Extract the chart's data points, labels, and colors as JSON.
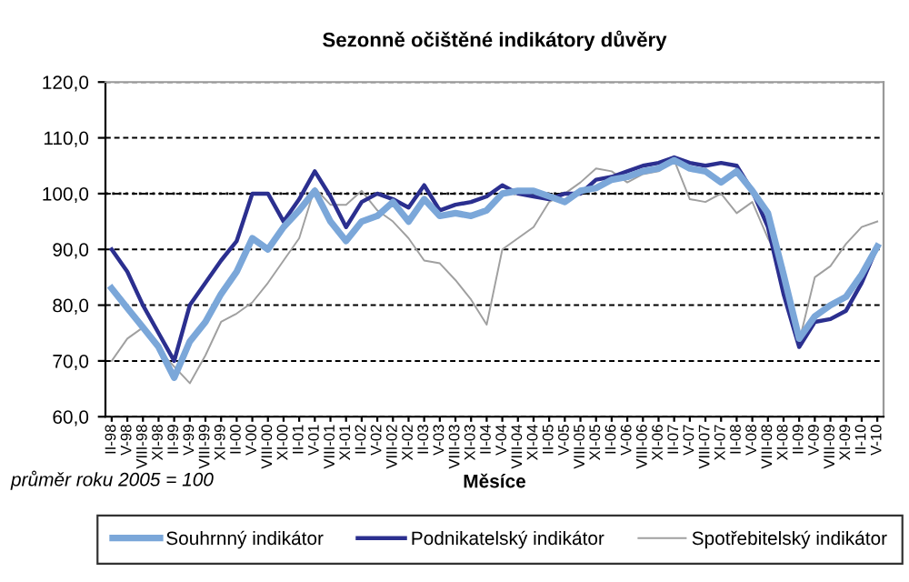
{
  "chart_data": {
    "type": "line",
    "title": "Sezonně očištěné indikátory důvěry",
    "xlabel": "Měsíce",
    "annotations": [
      "průměr roku 2005 = 100"
    ],
    "categories": [
      "II-98",
      "V-98",
      "VIII-98",
      "XI-98",
      "II-99",
      "V-99",
      "VIII-99",
      "XI-99",
      "II-00",
      "V-00",
      "VIII-00",
      "XI-00",
      "II-01",
      "V-01",
      "VIII-01",
      "XI-01",
      "II-02",
      "V-02",
      "VIII-02",
      "XI-02",
      "II-03",
      "V-03",
      "VIII-03",
      "XI-03",
      "II-04",
      "V-04",
      "VIII-04",
      "XI-04",
      "II-05",
      "V-05",
      "VIII-05",
      "XI-05",
      "II-06",
      "V-06",
      "VIII-06",
      "XI-06",
      "II-07",
      "V-07",
      "VIII-07",
      "XI-07",
      "II-08",
      "V-08",
      "VIII-08",
      "XI-08",
      "II-09",
      "V-09",
      "VIII-09",
      "XI-09",
      "II-10",
      "V-10"
    ],
    "series": [
      {
        "name": "Souhrnný indikátor",
        "color": "#7ba7d9",
        "values": [
          83,
          79.5,
          76,
          72.5,
          67,
          73.5,
          77,
          82,
          86,
          92,
          90,
          94,
          97,
          100.5,
          95,
          91.5,
          95,
          96,
          98.5,
          95,
          99,
          96,
          96.5,
          96,
          97,
          100,
          100.5,
          100.5,
          99.5,
          98.5,
          100.5,
          101,
          102.5,
          103,
          104,
          104.5,
          106,
          104.5,
          104,
          102,
          104,
          100.5,
          96.5,
          85.5,
          74,
          78,
          80,
          81.5,
          85.5,
          90.5
        ]
      },
      {
        "name": "Podnikatelský indikátor",
        "color": "#2b2f8f",
        "values": [
          90,
          86,
          80,
          75,
          70,
          80,
          84,
          88,
          91.5,
          100,
          100,
          95,
          99,
          104,
          99.5,
          94,
          98.5,
          100,
          99,
          97.5,
          101.5,
          97,
          98,
          98.5,
          99.5,
          101.5,
          100,
          99.5,
          99,
          100,
          100,
          102.5,
          103,
          104,
          105,
          105.5,
          106.5,
          105.5,
          105,
          105.5,
          105,
          100.5,
          94,
          82,
          72.5,
          77,
          77.5,
          79,
          84,
          90.5
        ]
      },
      {
        "name": "Spotřebitelský indikátor",
        "color": "#a0a0a0",
        "values": [
          70,
          74,
          76,
          72,
          69,
          66,
          71,
          77,
          78.5,
          80.5,
          84,
          88,
          92,
          101,
          98,
          98,
          100.5,
          97,
          95,
          92,
          88,
          87.5,
          84.5,
          81,
          76.5,
          90,
          92,
          94,
          98.5,
          100,
          102,
          104.5,
          104,
          102,
          103.5,
          104,
          106,
          99,
          98.5,
          100,
          96.5,
          98.5,
          92,
          87,
          73.5,
          85,
          87,
          91,
          94,
          95
        ]
      }
    ],
    "ylim": [
      60,
      120
    ],
    "yticks": [
      {
        "value": 60,
        "label": "60,0"
      },
      {
        "value": 70,
        "label": "70,0"
      },
      {
        "value": 80,
        "label": "80,0"
      },
      {
        "value": 90,
        "label": "90,0"
      },
      {
        "value": 100,
        "label": "100,0"
      },
      {
        "value": 110,
        "label": "110,0"
      },
      {
        "value": 120,
        "label": "120,0"
      }
    ],
    "grid": "y",
    "ref_lines": [
      {
        "axis": "y",
        "value": 100,
        "color": "#000000",
        "line_style": "dotted"
      }
    ],
    "legend": "bottom",
    "marker": "none",
    "line_style": "solid"
  }
}
